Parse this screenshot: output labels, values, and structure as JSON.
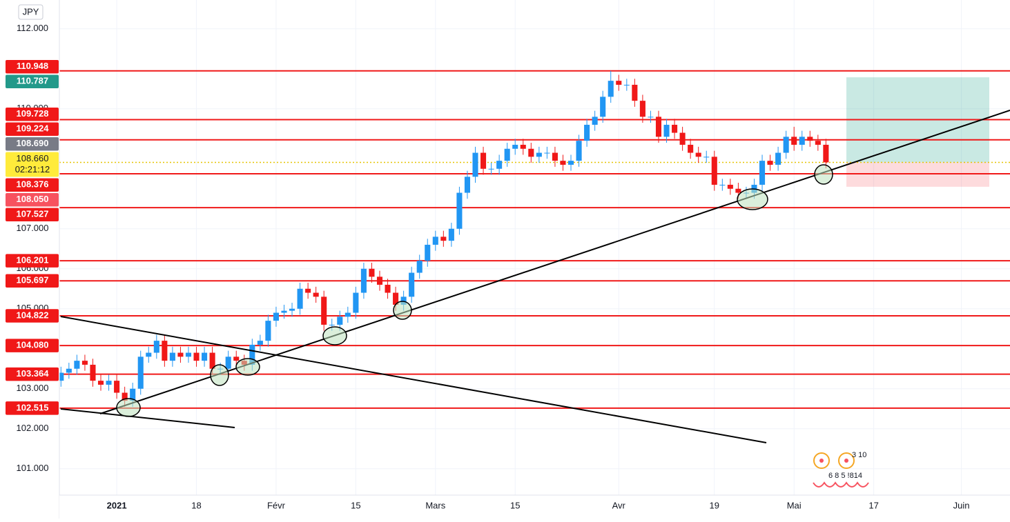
{
  "chart_data": {
    "type": "candlestick",
    "currency": "JPY",
    "up_color": "#2196f3",
    "down_color": "#f01818",
    "grid": true,
    "xlim": [
      -0.2,
      119.1
    ],
    "xticks": [
      {
        "value": 7,
        "label": "2021"
      },
      {
        "value": 17,
        "label": "18"
      },
      {
        "value": 27,
        "label": "Févr"
      },
      {
        "value": 37,
        "label": "15"
      },
      {
        "value": 47,
        "label": "Mars"
      },
      {
        "value": 57,
        "label": "15"
      },
      {
        "value": 70,
        "label": "Avr"
      },
      {
        "value": 82,
        "label": "19"
      },
      {
        "value": 92,
        "label": "Mai"
      },
      {
        "value": 102,
        "label": "17"
      },
      {
        "value": 113,
        "label": "Juin"
      }
    ],
    "ylim": [
      100.34,
      112.72
    ],
    "yticks": [
      {
        "value": 101,
        "label": "101.000"
      },
      {
        "value": 102,
        "label": "102.000"
      },
      {
        "value": 103,
        "label": "103.000"
      },
      {
        "value": 105,
        "label": "105.000"
      },
      {
        "value": 106,
        "label": "106.000"
      },
      {
        "value": 107,
        "label": "107.000"
      },
      {
        "value": 110,
        "label": "110.000"
      },
      {
        "value": 112,
        "label": "112.000"
      }
    ],
    "open": [
      103.2,
      103.4,
      103.5,
      103.7,
      103.6,
      103.2,
      103.1,
      103.2,
      102.9,
      102.7,
      103.0,
      103.8,
      103.9,
      104.2,
      103.7,
      103.9,
      103.8,
      103.9,
      103.7,
      103.9,
      103.5,
      103.5,
      103.8,
      103.7,
      103.6,
      104.1,
      104.2,
      104.7,
      104.9,
      104.95,
      105.0,
      105.5,
      105.4,
      105.3,
      104.6,
      104.6,
      104.8,
      104.9,
      105.4,
      106.0,
      105.8,
      105.6,
      105.4,
      105.1,
      105.3,
      105.9,
      106.2,
      106.6,
      106.8,
      106.7,
      107.0,
      107.9,
      108.3,
      108.9,
      108.5,
      108.5,
      108.7,
      109.0,
      109.1,
      109.0,
      108.8,
      108.9,
      108.9,
      108.7,
      108.6,
      108.7,
      109.2,
      109.6,
      109.8,
      110.3,
      110.7,
      110.6,
      110.6,
      110.2,
      109.8,
      109.8,
      109.3,
      109.6,
      109.4,
      109.1,
      108.9,
      108.8,
      108.8,
      108.1,
      108.1,
      108.0,
      107.9,
      107.9,
      108.1,
      108.7,
      108.6,
      108.9,
      109.3,
      109.1,
      109.3,
      109.2,
      109.1
    ],
    "high": [
      103.55,
      103.65,
      103.85,
      103.85,
      103.75,
      103.35,
      103.35,
      103.35,
      103.05,
      103.15,
      103.95,
      104.05,
      104.35,
      104.35,
      104.05,
      104.05,
      104.05,
      104.05,
      104.05,
      104.05,
      103.65,
      103.95,
      103.95,
      103.85,
      104.25,
      104.35,
      104.85,
      105.05,
      105.1,
      105.15,
      105.65,
      105.65,
      105.55,
      105.45,
      104.75,
      104.95,
      105.05,
      105.55,
      106.15,
      106.15,
      105.95,
      105.75,
      105.55,
      105.45,
      106.05,
      106.35,
      106.75,
      106.95,
      106.95,
      107.15,
      108.05,
      108.45,
      109.05,
      109.05,
      108.65,
      108.85,
      109.15,
      109.25,
      109.25,
      109.15,
      109.05,
      109.05,
      109.05,
      108.85,
      108.85,
      109.35,
      109.75,
      109.95,
      110.45,
      110.95,
      110.85,
      110.75,
      110.75,
      110.35,
      109.95,
      109.95,
      109.75,
      109.75,
      109.55,
      109.25,
      109.05,
      108.95,
      108.95,
      108.25,
      108.25,
      108.15,
      108.05,
      108.25,
      108.85,
      108.85,
      109.05,
      109.45,
      109.55,
      109.45,
      109.45,
      109.35,
      109.25
    ],
    "low": [
      103.05,
      103.25,
      103.35,
      103.45,
      103.05,
      102.95,
      102.95,
      102.75,
      102.55,
      102.55,
      102.85,
      103.65,
      103.75,
      103.55,
      103.55,
      103.65,
      103.65,
      103.55,
      103.55,
      103.35,
      103.35,
      103.35,
      103.55,
      103.45,
      103.45,
      103.95,
      104.05,
      104.55,
      104.75,
      104.8,
      104.85,
      105.25,
      105.15,
      104.45,
      104.45,
      104.45,
      104.65,
      104.75,
      105.25,
      105.65,
      105.45,
      105.25,
      104.95,
      104.95,
      105.15,
      105.75,
      106.05,
      106.45,
      106.55,
      106.55,
      106.85,
      107.75,
      108.15,
      108.35,
      108.35,
      108.35,
      108.55,
      108.85,
      108.85,
      108.65,
      108.65,
      108.75,
      108.55,
      108.45,
      108.45,
      108.55,
      109.05,
      109.45,
      109.65,
      110.15,
      110.45,
      110.45,
      110.05,
      109.65,
      109.65,
      109.15,
      109.15,
      109.25,
      108.95,
      108.75,
      108.65,
      108.65,
      107.95,
      107.95,
      107.85,
      107.75,
      107.75,
      107.75,
      107.95,
      108.45,
      108.45,
      108.75,
      108.95,
      108.95,
      109.05,
      108.95,
      108.51
    ],
    "close": [
      103.4,
      103.5,
      103.7,
      103.6,
      103.2,
      103.1,
      103.2,
      102.9,
      102.7,
      103.0,
      103.8,
      103.9,
      104.2,
      103.7,
      103.9,
      103.8,
      103.9,
      103.7,
      103.9,
      103.5,
      103.5,
      103.8,
      103.7,
      103.6,
      104.1,
      104.2,
      104.7,
      104.9,
      104.95,
      105.0,
      105.5,
      105.4,
      105.3,
      104.6,
      104.6,
      104.8,
      104.9,
      105.4,
      106.0,
      105.8,
      105.6,
      105.4,
      105.1,
      105.3,
      105.9,
      106.2,
      106.6,
      106.8,
      106.7,
      107.0,
      107.9,
      108.3,
      108.9,
      108.5,
      108.5,
      108.7,
      109.0,
      109.1,
      109.0,
      108.8,
      108.9,
      108.9,
      108.7,
      108.6,
      108.7,
      109.2,
      109.6,
      109.8,
      110.3,
      110.7,
      110.6,
      110.6,
      110.2,
      109.8,
      109.8,
      109.3,
      109.6,
      109.4,
      109.1,
      108.9,
      108.8,
      108.8,
      108.1,
      108.1,
      108.0,
      107.9,
      107.9,
      108.1,
      108.7,
      108.6,
      108.9,
      109.3,
      109.1,
      109.3,
      109.2,
      109.1,
      108.66
    ],
    "price_levels": [
      {
        "value": 110.948,
        "label": "110.948",
        "color": "#f01818",
        "line": "solid"
      },
      {
        "value": 110.787,
        "label": "110.787",
        "color": "#22998a"
      },
      {
        "value": 109.728,
        "label": "109.728",
        "color": "#f01818",
        "line": "solid"
      },
      {
        "value": 109.224,
        "label": "109.224",
        "color": "#f01818",
        "line": "solid"
      },
      {
        "value": 108.69,
        "label": "108.690",
        "color": "#787b86"
      },
      {
        "value": 108.66,
        "label": "108.660",
        "color": "#ffeb3b",
        "countdown": "02:21:12",
        "line": "dotted"
      },
      {
        "value": 108.376,
        "label": "108.376",
        "color": "#f01818",
        "line": "solid"
      },
      {
        "value": 108.05,
        "label": "108.050",
        "color": "#f7525f"
      },
      {
        "value": 107.527,
        "label": "107.527",
        "color": "#f01818",
        "line": "solid"
      },
      {
        "value": 106.201,
        "label": "106.201",
        "color": "#f01818",
        "line": "solid"
      },
      {
        "value": 105.697,
        "label": "105.697",
        "color": "#f01818",
        "line": "solid"
      },
      {
        "value": 104.822,
        "label": "104.822",
        "color": "#f01818",
        "line": "solid"
      },
      {
        "value": 104.08,
        "label": "104.080",
        "color": "#f01818",
        "line": "solid"
      },
      {
        "value": 103.364,
        "label": "103.364",
        "color": "#f01818",
        "line": "solid"
      },
      {
        "value": 102.515,
        "label": "102.515",
        "color": "#f01818",
        "line": "solid"
      }
    ],
    "position": {
      "target": 110.787,
      "entry": 108.66,
      "stop": 108.05
    },
    "overlay_texts": [
      "3 10",
      "6 8 5 !814"
    ]
  }
}
